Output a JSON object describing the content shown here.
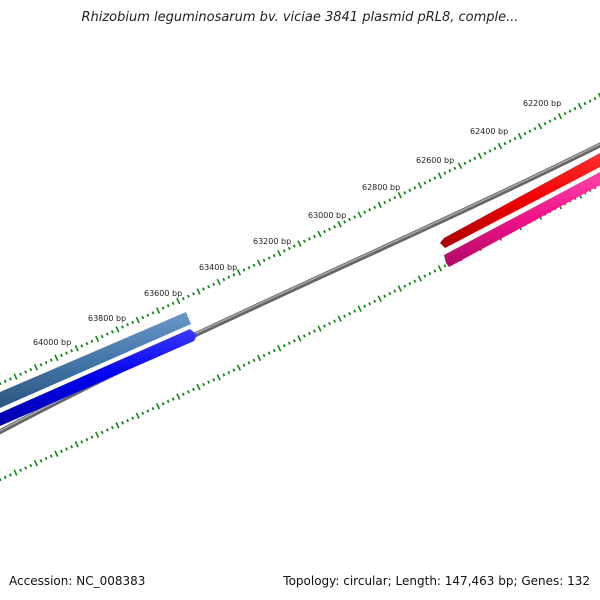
{
  "map": {
    "title": "Rhizobium leguminosarum bv. viciae 3841 plasmid pRL8, comple...",
    "accession_text": "Accession: NC_008383",
    "stats_text": "Topology: circular; Length: 147,463 bp; Genes: 132",
    "accession": "NC_008383",
    "topology": "circular",
    "length_bp": 147463,
    "genes": 132
  },
  "ruler": {
    "unit": "bp",
    "labels": [
      "62200 bp",
      "62400 bp",
      "62600 bp",
      "62800 bp",
      "63000 bp",
      "63200 bp",
      "63400 bp",
      "63600 bp",
      "63800 bp",
      "64000 bp"
    ]
  },
  "features": [
    {
      "name": "forward-gene-right",
      "strand": "+",
      "color": "#ee0000"
    },
    {
      "name": "reverse-gene-right",
      "strand": "-",
      "color": "#ee1188"
    },
    {
      "name": "forward-gene-left",
      "strand": "+",
      "color": "#4477aa"
    },
    {
      "name": "reverse-gene-left",
      "strand": "-",
      "color": "#0000ee"
    }
  ],
  "colors": {
    "backbone": "#777777",
    "ticks": "#118811"
  }
}
